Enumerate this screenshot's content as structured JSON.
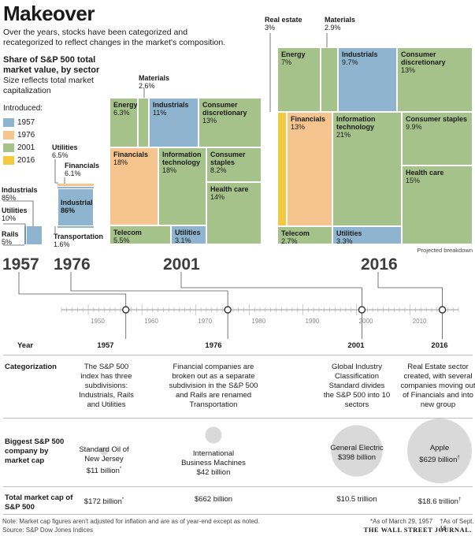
{
  "header": {
    "title": "Makeover",
    "subtitle": "Over the years, stocks have been categorized and recategorized to reflect changes in the market's composition.",
    "share_title": "Share of S&P 500 total market value, by sector",
    "share_sub": "Size reflects total market capitalization",
    "introduced_label": "Introduced:"
  },
  "colors": {
    "1957": "#8eb4cf",
    "1976": "#f6c48f",
    "2001": "#a6c28b",
    "2016": "#f2c93f",
    "line": "#555555"
  },
  "legend": [
    {
      "year": "1957",
      "color": "#8eb4cf"
    },
    {
      "year": "1976",
      "color": "#f6c48f"
    },
    {
      "year": "2001",
      "color": "#a6c28b"
    },
    {
      "year": "2016",
      "color": "#f2c93f"
    }
  ],
  "chart_data": [
    {
      "type": "treemap",
      "year": "1957",
      "sectors": [
        {
          "name": "Industrials",
          "value": 85,
          "label": "85%"
        },
        {
          "name": "Utilities",
          "value": 10,
          "label": "10%"
        },
        {
          "name": "Rails",
          "value": 5,
          "label": "5%"
        }
      ]
    },
    {
      "type": "treemap",
      "year": "1976",
      "sectors": [
        {
          "name": "Industrials",
          "value": 86,
          "label": "86%"
        },
        {
          "name": "Utilities",
          "value": 6.5,
          "label": "6.5%"
        },
        {
          "name": "Financials",
          "value": 6.1,
          "label": "6.1%"
        },
        {
          "name": "Transportation",
          "value": 1.6,
          "label": "1.6%"
        }
      ]
    },
    {
      "type": "treemap",
      "year": "2001",
      "sectors": [
        {
          "name": "Materials",
          "value": 2.6,
          "label": "2.6%"
        },
        {
          "name": "Energy",
          "value": 6.3,
          "label": "6.3%"
        },
        {
          "name": "Industrials",
          "value": 11,
          "label": "11%"
        },
        {
          "name": "Consumer discretionary",
          "value": 13,
          "label": "13%"
        },
        {
          "name": "Financials",
          "value": 18,
          "label": "18%"
        },
        {
          "name": "Information technology",
          "value": 18,
          "label": "18%"
        },
        {
          "name": "Consumer staples",
          "value": 8.2,
          "label": "8.2%"
        },
        {
          "name": "Health care",
          "value": 14,
          "label": "14%"
        },
        {
          "name": "Telecom",
          "value": 5.5,
          "label": "5.5%"
        },
        {
          "name": "Utilities",
          "value": 3.1,
          "label": "3.1%"
        }
      ]
    },
    {
      "type": "treemap",
      "year": "2016",
      "note": "Projected breakdown",
      "sectors": [
        {
          "name": "Real estate",
          "value": 3,
          "label": "3%"
        },
        {
          "name": "Materials",
          "value": 2.9,
          "label": "2.9%"
        },
        {
          "name": "Energy",
          "value": 7,
          "label": "7%"
        },
        {
          "name": "Industrials",
          "value": 9.7,
          "label": "9.7%"
        },
        {
          "name": "Consumer discretionary",
          "value": 13,
          "label": "13%"
        },
        {
          "name": "Financials",
          "value": 13,
          "label": "13%"
        },
        {
          "name": "Information technology",
          "value": 21,
          "label": "21%"
        },
        {
          "name": "Consumer staples",
          "value": 9.9,
          "label": "9.9%"
        },
        {
          "name": "Health care",
          "value": 15,
          "label": "15%"
        },
        {
          "name": "Telecom",
          "value": 2.7,
          "label": "2.7%"
        },
        {
          "name": "Utilities",
          "value": 3.3,
          "label": "3.3%"
        }
      ]
    }
  ],
  "big_years": [
    "1957",
    "1976",
    "2001",
    "2016"
  ],
  "timeline": {
    "ticks": [
      "1950",
      "1960",
      "1970",
      "1980",
      "1990",
      "2000",
      "2010"
    ],
    "range": [
      1945,
      2019
    ],
    "events": [
      1957,
      1976,
      2001,
      2016
    ]
  },
  "table": {
    "year_label": "Year",
    "years": [
      "1957",
      "1976",
      "2001",
      "2016"
    ],
    "categorization_label": "Categorization",
    "categorization": [
      "The S&P 500 index has three subdivisions: Industrials, Rails and Utilities",
      "Financial companies are broken out as a separate subdivision in the S&P 500 and Rails are renamed Transportation",
      "Global Industry Classification Standard divides the S&P 500 into 10 sectors",
      "Real Estate sector created, with several companies moving out of Financials and into new group"
    ],
    "biggest_label": "Biggest S&P 500 company by market cap",
    "biggest": [
      {
        "name": "Standard Oil of New Jersey",
        "cap": "$11 billion",
        "mark": "*",
        "value": 11
      },
      {
        "name": "International Business Machines",
        "cap": "$42 billion",
        "mark": "",
        "value": 42
      },
      {
        "name": "General Electric",
        "cap": "$398 billion",
        "mark": "",
        "value": 398
      },
      {
        "name": "Apple",
        "cap": "$629 billion",
        "mark": "†",
        "value": 629
      }
    ],
    "total_label": "Total market cap of S&P 500",
    "total": [
      {
        "value": "$172 billion",
        "mark": "*"
      },
      {
        "value": "$662 billion",
        "mark": ""
      },
      {
        "value": "$10.5 trillion",
        "mark": ""
      },
      {
        "value": "$18.6 trillion",
        "mark": "†"
      }
    ]
  },
  "footer": {
    "note": "Note: Market cap figures aren't adjusted for inflation and are as of year-end except as noted.",
    "source": "Source: S&P Dow Jones Indices",
    "foot1": "*As of March 29, 1957",
    "foot2": "†As of Sept. 16",
    "brand": "THE WALL STREET JOURNAL."
  }
}
